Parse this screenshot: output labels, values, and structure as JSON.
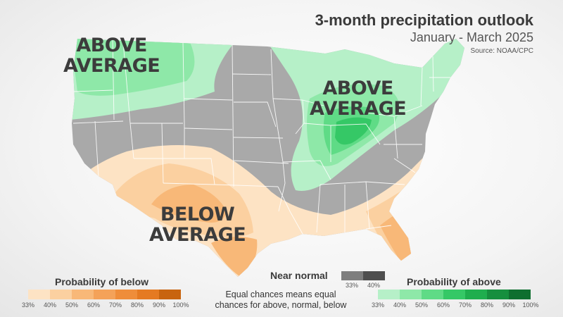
{
  "header": {
    "title": "3-month precipitation outlook",
    "subtitle": "January - March 2025",
    "source": "Source: NOAA/CPC"
  },
  "map_labels": {
    "northwest": "ABOVE\nAVERAGE",
    "great_lakes": "ABOVE\nAVERAGE",
    "south": "BELOW\nAVERAGE"
  },
  "colors": {
    "near_normal": "#a9a9a9",
    "state_lines": "#ffffff",
    "below": [
      "#fde3c4",
      "#fbd0a0",
      "#f8b878",
      "#f4a259",
      "#ef8d3a",
      "#e57a22",
      "#c8640f"
    ],
    "above": [
      "#b6f0c8",
      "#8ee8a8",
      "#5fdb86",
      "#35c866",
      "#1fae4e",
      "#168f3e",
      "#0e6f2f"
    ]
  },
  "legend": {
    "below": {
      "title": "Probability of below",
      "ticks": [
        "33%",
        "40%",
        "50%",
        "60%",
        "70%",
        "80%",
        "90%",
        "100%"
      ]
    },
    "above": {
      "title": "Probability of above",
      "ticks": [
        "33%",
        "40%",
        "50%",
        "60%",
        "70%",
        "80%",
        "90%",
        "100%"
      ]
    },
    "near_normal": {
      "title": "Near normal",
      "ticks": [
        "33%",
        "40%"
      ],
      "colors": [
        "#7e7e7e",
        "#4f4f4f"
      ]
    },
    "equal_chances_note": "Equal chances means equal\nchances for above, normal, below"
  }
}
